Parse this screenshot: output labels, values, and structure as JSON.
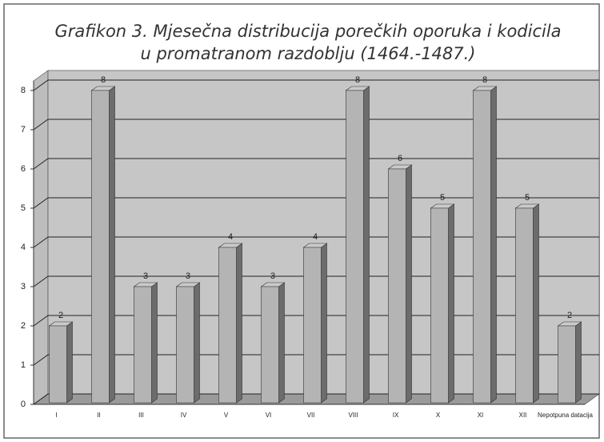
{
  "chart_data": {
    "type": "bar3d",
    "title": [
      "Grafikon 3. Mjesečna distribucija porečkih oporuka i kodicila",
      "u promatranom razdoblju  (1464.-1487.)"
    ],
    "categories": [
      "I",
      "II",
      "III",
      "IV",
      "V",
      "VI",
      "VII",
      "VIII",
      "IX",
      "X",
      "XI",
      "XII",
      "Nepotpuna datacija"
    ],
    "values": [
      2,
      8,
      3,
      3,
      4,
      3,
      4,
      8,
      6,
      5,
      8,
      5,
      2
    ],
    "color": "#b4b4b4",
    "ylim": [
      0,
      8
    ],
    "yticks": [
      0,
      1,
      2,
      3,
      4,
      5,
      6,
      7,
      8
    ],
    "grid": true
  }
}
